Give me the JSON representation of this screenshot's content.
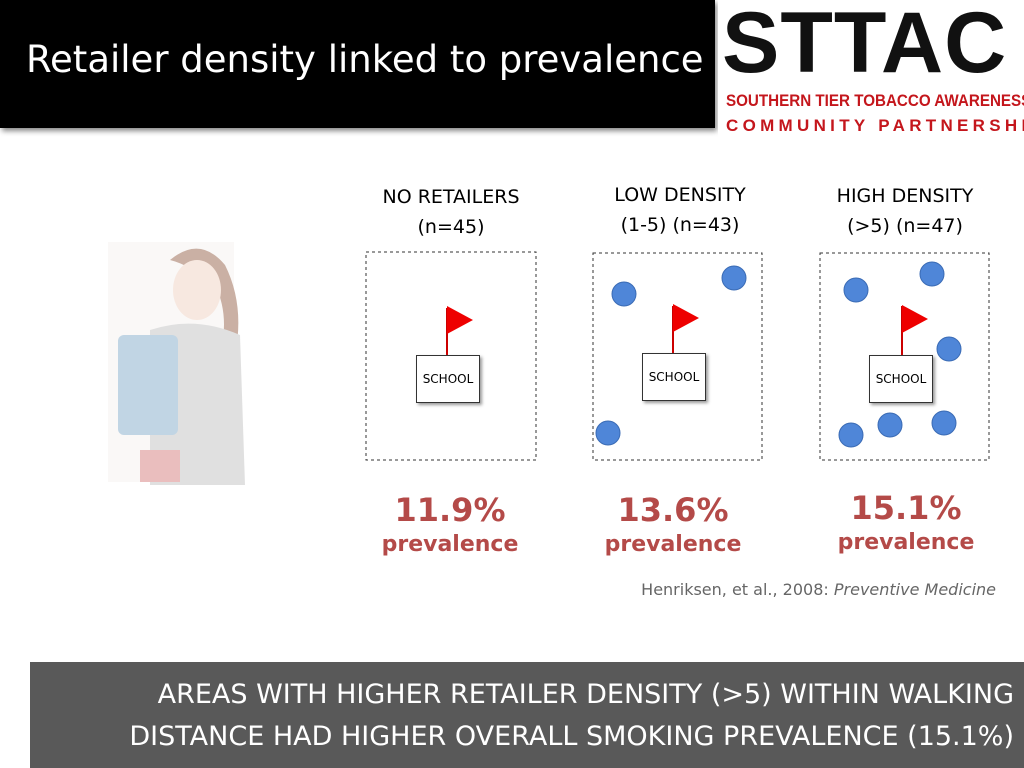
{
  "header": {
    "title": "Retailer density linked to prevalence"
  },
  "logo": {
    "mark": "STTAC",
    "line1": "SOUTHERN TIER TOBACCO AWARENESS",
    "line2": "COMMUNITY PARTNERSHIP"
  },
  "panels": [
    {
      "label": [
        "NO RETAILERS",
        "(n=45)"
      ],
      "school": "SCHOOL",
      "prevalence": "11.9%",
      "caption": "prevalence"
    },
    {
      "label": [
        "LOW DENSITY",
        "(1-5) (n=43)"
      ],
      "school": "SCHOOL",
      "prevalence": "13.6%",
      "caption": "prevalence"
    },
    {
      "label": [
        "HIGH DENSITY",
        "(>5) (n=47)"
      ],
      "school": "SCHOOL",
      "prevalence": "15.1%",
      "caption": "prevalence"
    }
  ],
  "citation": {
    "authors": "Henriksen, et al., 2008:",
    "journal": "Preventive Medicine"
  },
  "footer": {
    "lines": [
      "AREAS WITH HIGHER RETAILER DENSITY (>5) WITHIN WALKING",
      "DISTANCE HAD HIGHER OVERALL SMOKING PREVALENCE (15.1%)"
    ]
  }
}
